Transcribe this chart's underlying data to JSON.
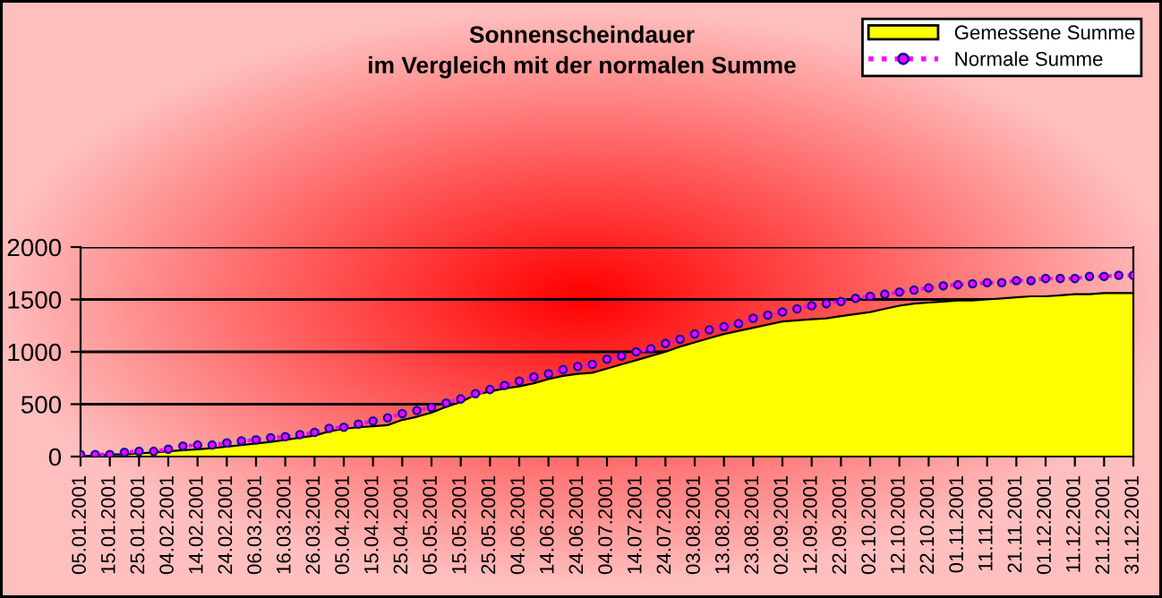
{
  "chart_data": {
    "type": "area",
    "title": "Sonnenscheindauer\nim Vergleich mit der normalen Summe",
    "categories": [
      "05.01.2001",
      null,
      "15.01.2001",
      null,
      "25.01.2001",
      null,
      "04.02.2001",
      null,
      "14.02.2001",
      null,
      "24.02.2001",
      null,
      "06.03.2001",
      null,
      "16.03.2001",
      null,
      "26.03.2001",
      null,
      "05.04.2001",
      null,
      "15.04.2001",
      null,
      "25.04.2001",
      null,
      "05.05.2001",
      null,
      "15.05.2001",
      null,
      "25.05.2001",
      null,
      "04.06.2001",
      null,
      "14.06.2001",
      null,
      "24.06.2001",
      null,
      "04.07.2001",
      null,
      "14.07.2001",
      null,
      "24.07.2001",
      null,
      "03.08.2001",
      null,
      "13.08.2001",
      null,
      "23.08.2001",
      null,
      "02.09.2001",
      null,
      "12.09.2001",
      null,
      "22.09.2001",
      null,
      "02.10.2001",
      null,
      "12.10.2001",
      null,
      "22.10.2001",
      null,
      "01.11.2001",
      null,
      "11.11.2001",
      null,
      "21.11.2001",
      null,
      "01.12.2001",
      null,
      "11.12.2001",
      null,
      "21.12.2001",
      null,
      "31.12.2001"
    ],
    "series": [
      {
        "name": "Gemessene Summe",
        "color": "#ffff00",
        "values": [
          0,
          10,
          20,
          20,
          30,
          40,
          50,
          60,
          70,
          80,
          95,
          110,
          125,
          140,
          160,
          180,
          200,
          240,
          265,
          280,
          290,
          300,
          350,
          380,
          420,
          475,
          520,
          590,
          620,
          650,
          670,
          700,
          740,
          770,
          790,
          800,
          840,
          880,
          920,
          960,
          1000,
          1050,
          1090,
          1130,
          1170,
          1200,
          1230,
          1260,
          1290,
          1300,
          1310,
          1320,
          1340,
          1360,
          1380,
          1410,
          1440,
          1460,
          1470,
          1480,
          1490,
          1490,
          1500,
          1510,
          1520,
          1530,
          1530,
          1540,
          1550,
          1550,
          1560,
          1560,
          1560
        ]
      },
      {
        "name": "Normale Summe",
        "type": "line",
        "color": "#ff00ff",
        "marker": "circle",
        "line_style": "dotted",
        "values": [
          20,
          20,
          20,
          40,
          50,
          50,
          70,
          100,
          110,
          110,
          130,
          150,
          160,
          180,
          190,
          210,
          230,
          270,
          280,
          310,
          340,
          370,
          410,
          440,
          470,
          510,
          550,
          600,
          640,
          680,
          720,
          760,
          790,
          830,
          860,
          880,
          930,
          960,
          1000,
          1030,
          1080,
          1120,
          1170,
          1210,
          1240,
          1270,
          1320,
          1350,
          1380,
          1410,
          1440,
          1460,
          1480,
          1510,
          1530,
          1550,
          1570,
          1590,
          1610,
          1630,
          1640,
          1650,
          1660,
          1660,
          1680,
          1680,
          1700,
          1700,
          1700,
          1720,
          1720,
          1730,
          1730
        ]
      }
    ],
    "ylim": [
      0,
      2000
    ],
    "yticks": [
      0,
      500,
      1000,
      1500,
      2000
    ],
    "grid": "y",
    "legend": "top right"
  }
}
